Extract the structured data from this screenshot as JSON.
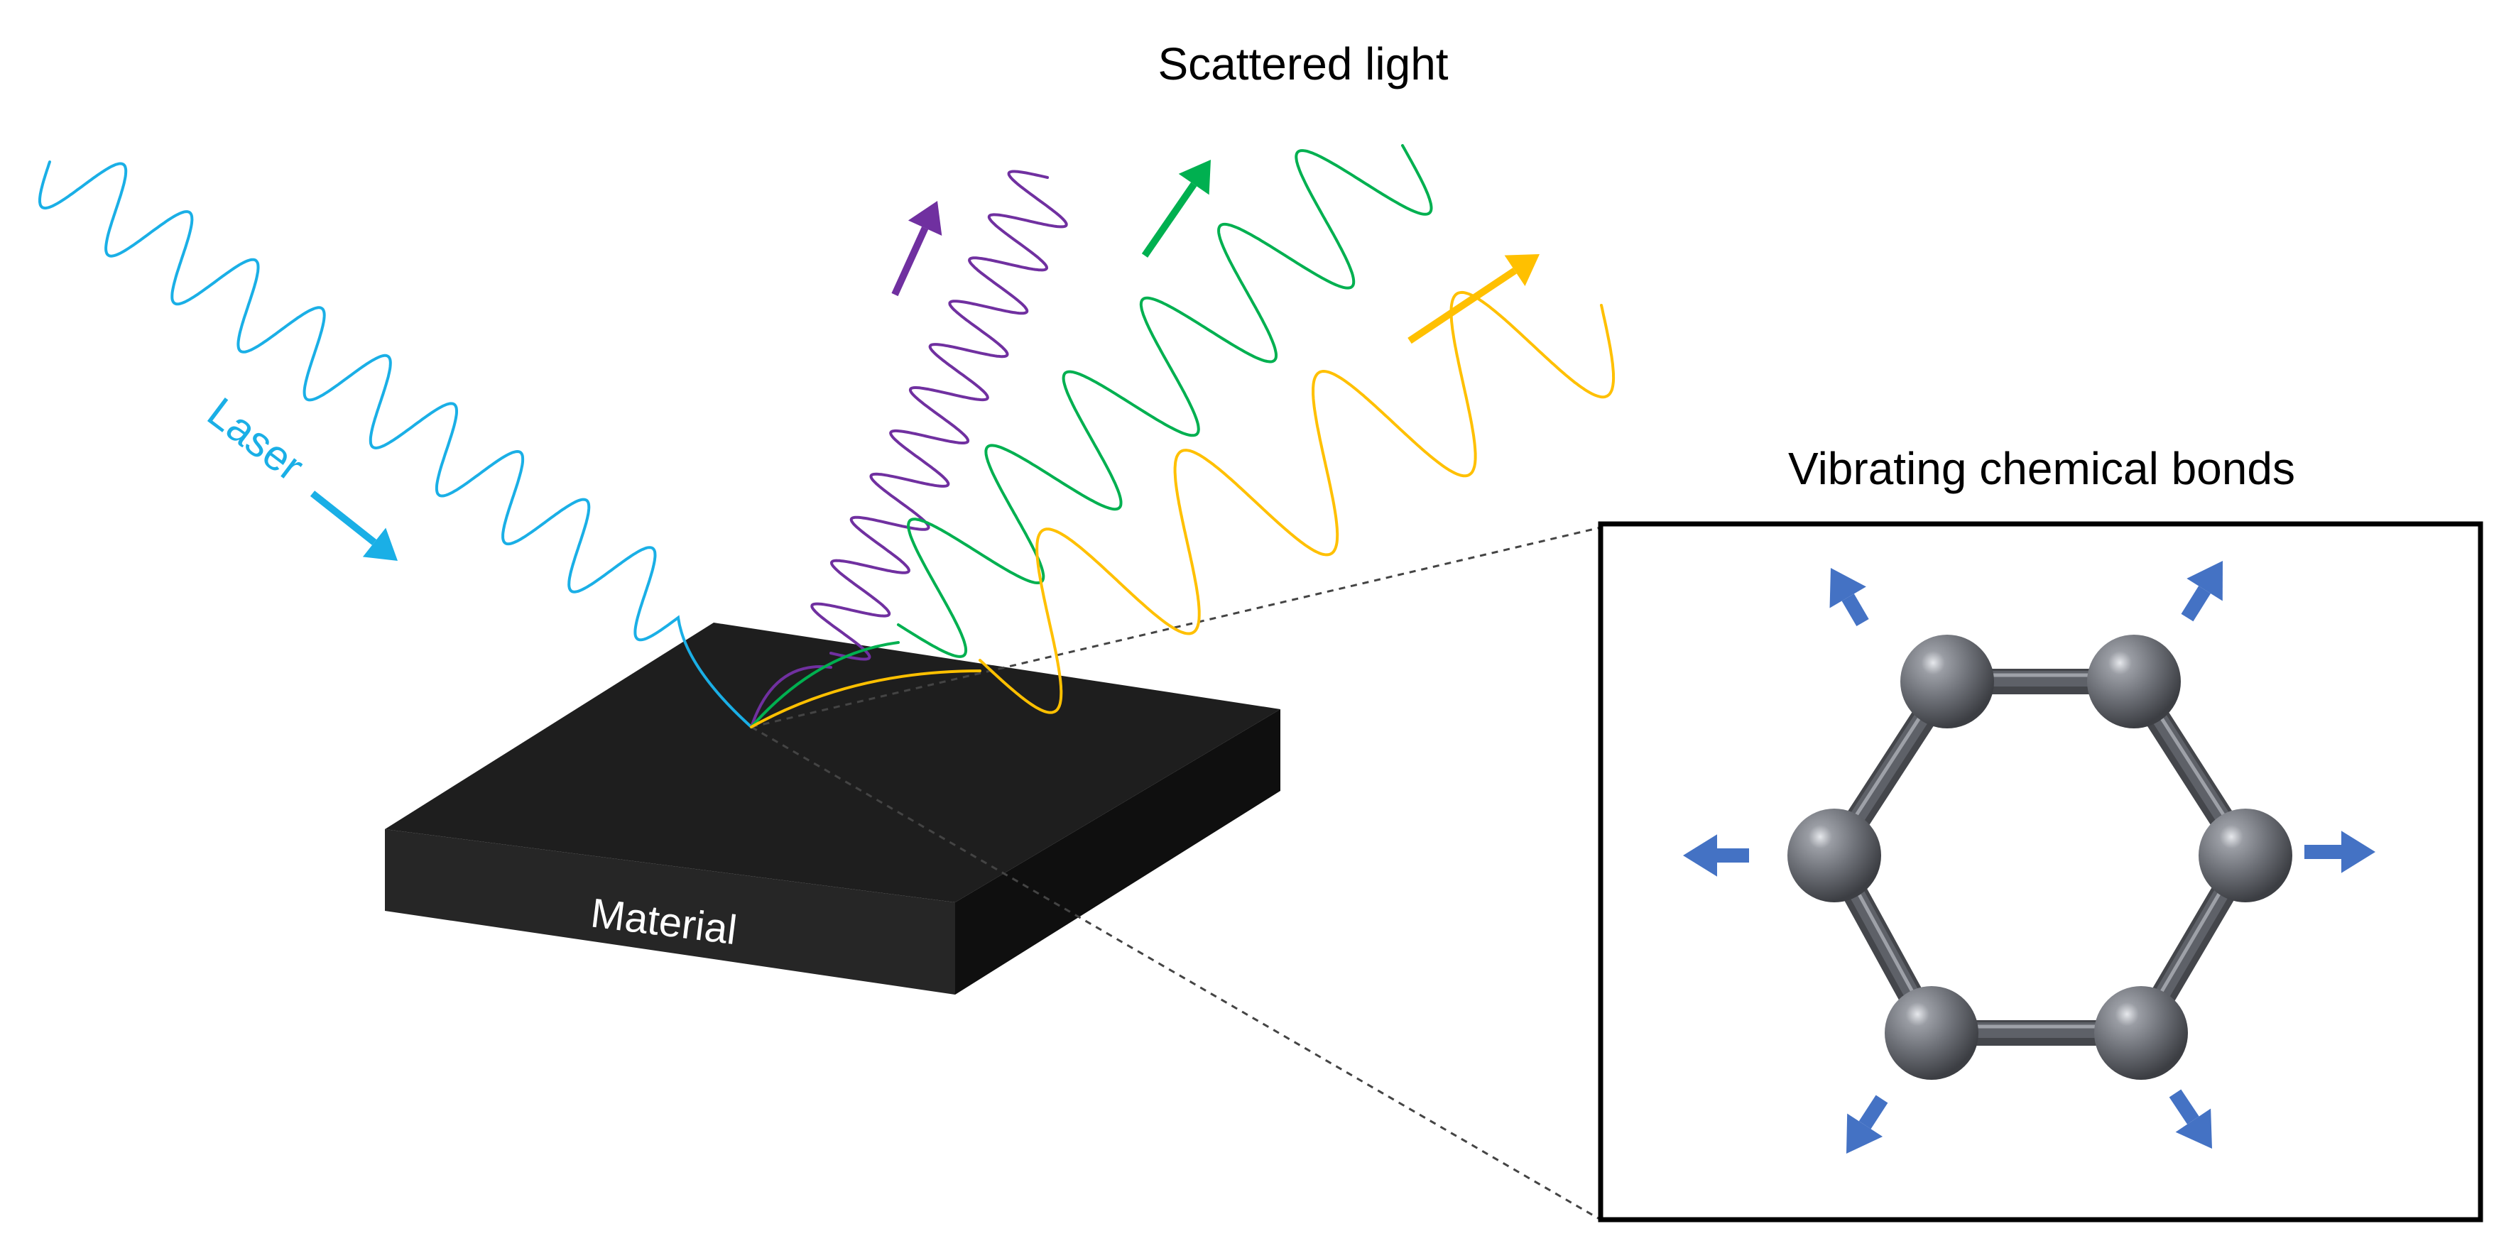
{
  "labels": {
    "scattered_light": "Scattered light",
    "laser": "Laser",
    "material": "Material",
    "vibrating_bonds": "Vibrating chemical bonds"
  },
  "colors": {
    "laser": "#1AAFE6",
    "scatter_purple": "#7030A0",
    "scatter_green": "#00B050",
    "scatter_yellow": "#FFC000",
    "material_top": "#1E1E1E",
    "material_front": "#262626",
    "material_side": "#0F0F0F",
    "atom": "#6E7178",
    "bond": "#5E6168",
    "vibration_arrow": "#4472C4",
    "panel_border": "#000000"
  },
  "icons": {
    "laser_direction": "arrow-down-right-icon",
    "scatter_direction": "arrow-up-right-icon",
    "vibration": "arrow-outward-icon",
    "molecule": "hexagonal-ring-molecule-icon"
  }
}
